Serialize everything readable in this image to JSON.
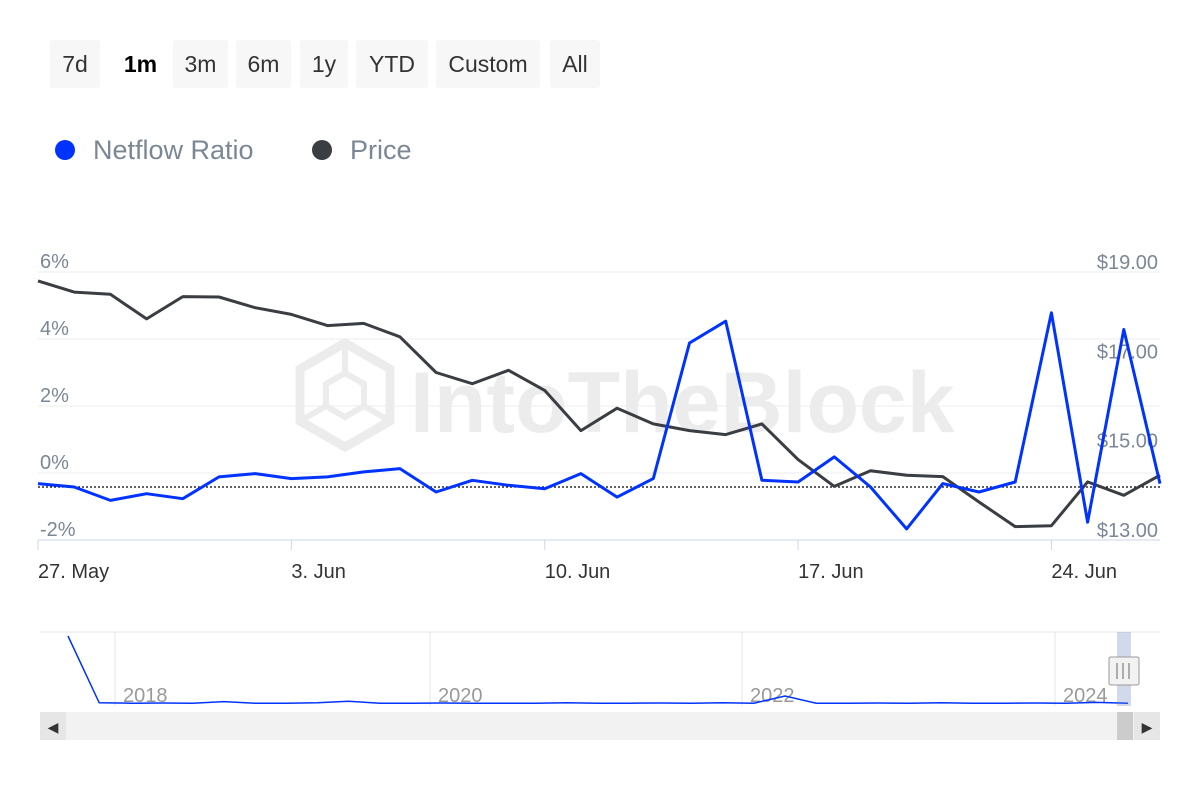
{
  "range_selector": {
    "buttons": [
      "7d",
      "1m",
      "3m",
      "6m",
      "1y",
      "YTD",
      "Custom",
      "All"
    ],
    "selected": "1m"
  },
  "legend": {
    "items": [
      {
        "label": "Netflow Ratio",
        "color": "#0033ff"
      },
      {
        "label": "Price",
        "color": "#3a3d42"
      }
    ]
  },
  "watermark": "IntoTheBlock",
  "chart_data": {
    "type": "line",
    "title": "",
    "x_start": "27. May",
    "x_end": "27. Jun",
    "x_tick_labels": [
      "27. May",
      "3. Jun",
      "10. Jun",
      "17. Jun",
      "24. Jun"
    ],
    "y_left": {
      "ticks": [
        "6%",
        "4%",
        "2%",
        "0%",
        "-2%"
      ],
      "range": [
        -2,
        6
      ]
    },
    "y_right": {
      "ticks": [
        "$19.00",
        "$17.00",
        "$15.00",
        "$13.00"
      ],
      "range": [
        13,
        19
      ]
    },
    "zero_line": true,
    "legend_position": "top-left",
    "series": [
      {
        "name": "Netflow Ratio",
        "axis": "left",
        "color": "#0033ff",
        "values": [
          0.1,
          0.0,
          -0.4,
          -0.2,
          -0.35,
          0.3,
          0.4,
          0.25,
          0.3,
          0.45,
          0.55,
          -0.15,
          0.2,
          0.05,
          -0.05,
          0.4,
          -0.3,
          0.25,
          4.3,
          4.95,
          0.2,
          0.15,
          0.9,
          0.0,
          -1.25,
          0.1,
          -0.15,
          0.15,
          5.2,
          -1.05,
          4.7,
          0.1
        ]
      },
      {
        "name": "Price",
        "axis": "right",
        "color": "#3a3d42",
        "values": [
          18.8,
          18.55,
          18.5,
          17.95,
          18.45,
          18.44,
          18.2,
          18.05,
          17.8,
          17.85,
          17.55,
          16.75,
          16.5,
          16.8,
          16.35,
          15.45,
          15.95,
          15.6,
          15.45,
          15.36,
          15.6,
          14.8,
          14.2,
          14.55,
          14.45,
          14.42,
          13.85,
          13.3,
          13.32,
          14.3,
          14.0,
          14.45
        ]
      }
    ]
  },
  "navigator": {
    "year_labels": [
      "2018",
      "2020",
      "2022",
      "2024"
    ],
    "series_values": [
      17,
      0.3,
      0.2,
      0.25,
      0.2,
      0.6,
      0.2,
      0.2,
      0.3,
      0.7,
      0.2,
      0.2,
      0.25,
      0.2,
      0.2,
      0.2,
      0.3,
      0.2,
      0.2,
      0.25,
      0.2,
      0.3,
      0.2,
      2.0,
      0.2,
      0.2,
      0.25,
      0.2,
      0.3,
      0.2,
      0.2,
      0.25,
      0.2,
      0.4,
      0.2
    ]
  },
  "scrollbar": {
    "left_arrow": "◀",
    "right_arrow": "▶"
  }
}
